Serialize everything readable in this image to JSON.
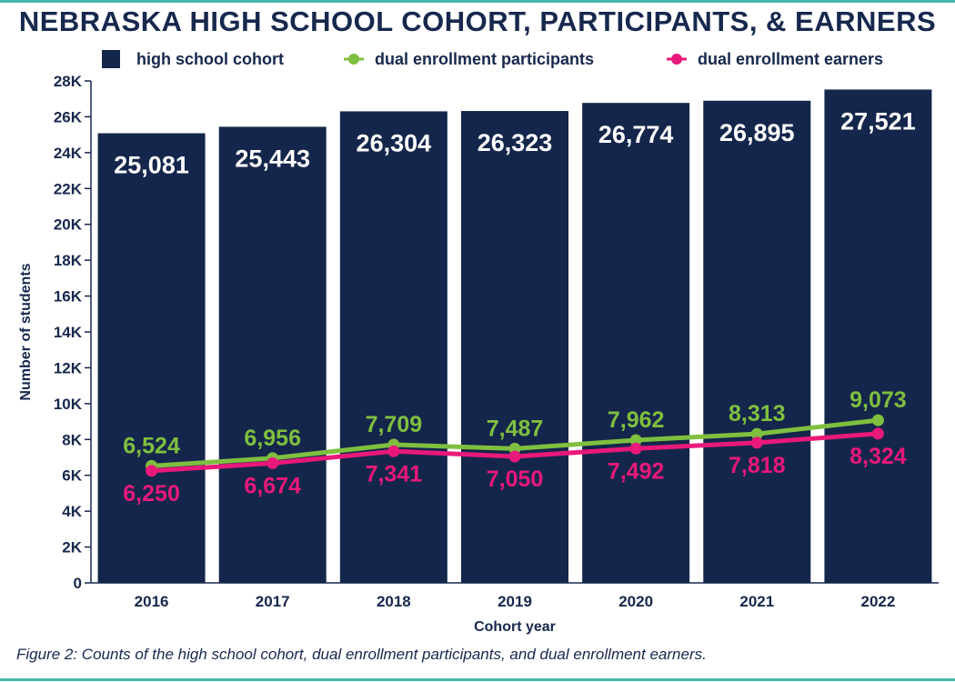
{
  "title": "NEBRASKA HIGH SCHOOL COHORT, PARTICIPANTS, & EARNERS",
  "caption": "Figure 2: Counts of the high school cohort, dual enrollment participants, and dual enrollment earners.",
  "colors": {
    "cohort": "#14264b",
    "participants": "#7fbf3f",
    "earners": "#e8197a",
    "rule": "#45b9aa",
    "text": "#17284d"
  },
  "chart_data": {
    "type": "bar",
    "title": "NEBRASKA HIGH SCHOOL COHORT, PARTICIPANTS, & EARNERS",
    "xlabel": "Cohort year",
    "ylabel": "Number of students",
    "categories": [
      "2016",
      "2017",
      "2018",
      "2019",
      "2020",
      "2021",
      "2022"
    ],
    "ylim": [
      0,
      28000
    ],
    "y_ticks": [
      0,
      2000,
      4000,
      6000,
      8000,
      10000,
      12000,
      14000,
      16000,
      18000,
      20000,
      22000,
      24000,
      26000,
      28000
    ],
    "y_tick_labels": [
      "0",
      "2K",
      "4K",
      "6K",
      "8K",
      "10K",
      "12K",
      "14K",
      "16K",
      "18K",
      "20K",
      "22K",
      "24K",
      "26K",
      "28K"
    ],
    "legend_position": "top",
    "series": [
      {
        "name": "high school cohort",
        "kind": "bar",
        "color": "#14264b",
        "values": [
          25081,
          25443,
          26304,
          26323,
          26774,
          26895,
          27521
        ],
        "labels": [
          "25,081",
          "25,443",
          "26,304",
          "26,323",
          "26,774",
          "26,895",
          "27,521"
        ]
      },
      {
        "name": "dual enrollment participants",
        "kind": "line",
        "color": "#7fbf3f",
        "values": [
          6524,
          6956,
          7709,
          7487,
          7962,
          8313,
          9073
        ],
        "labels": [
          "6,524",
          "6,956",
          "7,709",
          "7,487",
          "7,962",
          "8,313",
          "9,073"
        ]
      },
      {
        "name": "dual enrollment earners",
        "kind": "line",
        "color": "#e8197a",
        "values": [
          6250,
          6674,
          7341,
          7050,
          7492,
          7818,
          8324
        ],
        "labels": [
          "6,250",
          "6,674",
          "7,341",
          "7,050",
          "7,492",
          "7,818",
          "8,324"
        ]
      }
    ]
  }
}
